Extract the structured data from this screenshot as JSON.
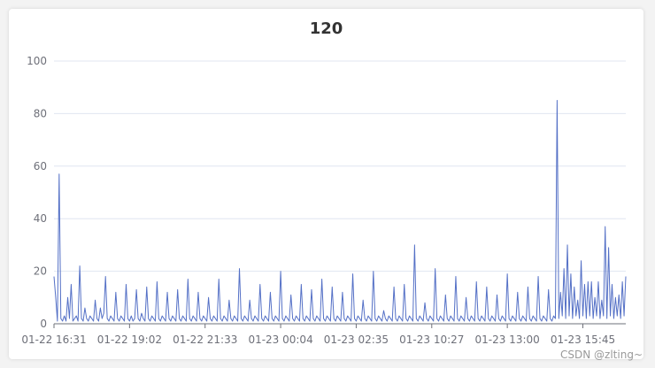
{
  "chart_data": {
    "type": "line",
    "title": "120",
    "xlabel": "",
    "ylabel": "",
    "ylim": [
      0,
      100
    ],
    "yticks": [
      0,
      20,
      40,
      60,
      80,
      100
    ],
    "grid": true,
    "line_color": "#5470c6",
    "x_tick_labels": [
      "01-22 16:31",
      "01-22 19:02",
      "01-22 21:33",
      "01-23 00:04",
      "01-23 02:35",
      "01-23 10:27",
      "01-23 13:00",
      "01-23 15:45"
    ],
    "x_tick_label_index": [
      0,
      44,
      88,
      132,
      176,
      220,
      264,
      308
    ],
    "series": [
      {
        "values": [
          18,
          10,
          1,
          57,
          2,
          1,
          3,
          1,
          10,
          2,
          15,
          1,
          2,
          3,
          1,
          22,
          2,
          1,
          6,
          2,
          1,
          3,
          2,
          1,
          9,
          2,
          1,
          6,
          2,
          4,
          18,
          2,
          1,
          3,
          2,
          1,
          12,
          2,
          1,
          3,
          2,
          1,
          15,
          2,
          1,
          3,
          1,
          2,
          13,
          2,
          1,
          4,
          2,
          1,
          14,
          2,
          1,
          3,
          2,
          1,
          16,
          2,
          1,
          3,
          2,
          1,
          12,
          2,
          1,
          3,
          2,
          1,
          13,
          2,
          1,
          3,
          2,
          1,
          17,
          2,
          1,
          3,
          2,
          1,
          12,
          2,
          1,
          3,
          2,
          1,
          10,
          2,
          1,
          3,
          2,
          1,
          17,
          2,
          1,
          3,
          2,
          1,
          9,
          2,
          1,
          3,
          2,
          1,
          21,
          2,
          1,
          3,
          2,
          1,
          9,
          2,
          1,
          3,
          2,
          1,
          15,
          2,
          1,
          3,
          2,
          1,
          12,
          2,
          1,
          3,
          2,
          1,
          20,
          2,
          1,
          3,
          2,
          1,
          11,
          2,
          1,
          3,
          2,
          1,
          15,
          2,
          1,
          3,
          2,
          1,
          13,
          2,
          1,
          3,
          2,
          1,
          17,
          2,
          1,
          3,
          2,
          1,
          14,
          2,
          1,
          3,
          2,
          1,
          12,
          2,
          1,
          3,
          2,
          1,
          19,
          2,
          1,
          3,
          2,
          1,
          9,
          2,
          1,
          3,
          2,
          1,
          20,
          2,
          1,
          3,
          2,
          1,
          5,
          2,
          1,
          3,
          2,
          1,
          14,
          2,
          1,
          3,
          2,
          1,
          15,
          2,
          1,
          3,
          2,
          1,
          30,
          2,
          1,
          3,
          2,
          1,
          8,
          2,
          1,
          3,
          2,
          1,
          21,
          2,
          1,
          3,
          2,
          1,
          11,
          2,
          1,
          3,
          2,
          1,
          18,
          2,
          1,
          3,
          2,
          1,
          10,
          2,
          1,
          3,
          2,
          1,
          16,
          2,
          1,
          3,
          2,
          1,
          14,
          2,
          1,
          3,
          2,
          1,
          11,
          2,
          1,
          3,
          2,
          1,
          19,
          2,
          1,
          3,
          2,
          1,
          12,
          2,
          1,
          3,
          2,
          1,
          14,
          2,
          1,
          3,
          2,
          1,
          18,
          2,
          1,
          3,
          2,
          1,
          13,
          2,
          1,
          3,
          2,
          85,
          2,
          12,
          3,
          21,
          2,
          30,
          3,
          19,
          2,
          14,
          3,
          9,
          2,
          24,
          3,
          15,
          2,
          16,
          3,
          16,
          2,
          10,
          3,
          16,
          2,
          9,
          3,
          37,
          2,
          29,
          3,
          15,
          2,
          10,
          3,
          11,
          2,
          16,
          3,
          18
        ]
      }
    ]
  },
  "watermark": "CSDN @zlting~"
}
